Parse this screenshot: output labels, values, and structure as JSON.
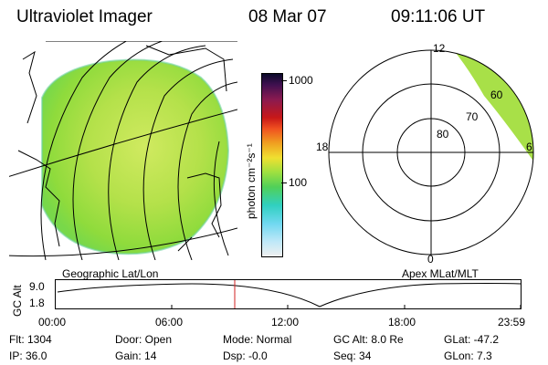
{
  "header": {
    "instrument": "Ultraviolet Imager",
    "date": "08 Mar 07",
    "time": "09:11:06 UT"
  },
  "colorbar": {
    "unit_label": "photon cm⁻²s⁻¹",
    "tick_1000": "1000",
    "tick_100": "100"
  },
  "polar_plot": {
    "mlt_labels": {
      "top": "12",
      "left": "18",
      "right": "6",
      "bottom": "0"
    },
    "mlat_labels": [
      "80",
      "70",
      "60"
    ]
  },
  "map_labels": {
    "left": "Geographic Lat/Lon",
    "right": "Apex MLat/MLT"
  },
  "altitude_plot": {
    "ylabel": "GC Alt",
    "yticks": [
      "9.0",
      "1.8"
    ],
    "xticks": [
      "00:00",
      "06:00",
      "12:00",
      "18:00",
      "23:59"
    ]
  },
  "info": {
    "flt": "Flt: 1304",
    "ip": "IP: 36.0",
    "door": "Door: Open",
    "gain": "Gain: 14",
    "mode": "Mode: Normal",
    "dsp": "Dsp:   -0.0",
    "gcalt": "GC Alt: 8.0 Re",
    "seq": "Seq: 34",
    "glat": "GLat: -47.2",
    "glon": "GLon:   7.3"
  },
  "colors": {
    "disk_fill": "#9fe03a",
    "disk_bright": "#c4e85a",
    "current_time_marker": "#d02020"
  }
}
